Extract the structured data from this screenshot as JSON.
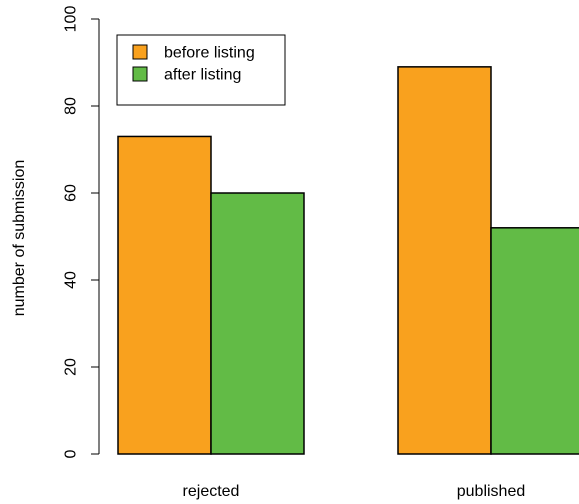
{
  "chart_data": {
    "type": "bar",
    "categories": [
      "rejected",
      "published"
    ],
    "series": [
      {
        "name": "before listing",
        "color": "#f9a11e",
        "values": [
          73,
          89
        ]
      },
      {
        "name": "after listing",
        "color": "#62bb46",
        "values": [
          60,
          52
        ]
      }
    ],
    "xlabel": "",
    "ylabel": "number of submission",
    "ylim": [
      0,
      100
    ],
    "yticks": [
      0,
      20,
      40,
      60,
      80,
      100
    ],
    "grid": false,
    "legend_position": "top-left"
  }
}
